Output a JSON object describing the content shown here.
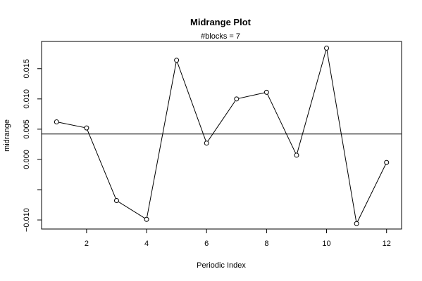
{
  "chart_data": {
    "type": "line",
    "title": "Midrange Plot",
    "subtitle": "#blocks =  7",
    "xlabel": "Periodic Index",
    "ylabel": "midrange",
    "x": [
      1,
      2,
      3,
      4,
      5,
      6,
      7,
      8,
      9,
      10,
      11,
      12
    ],
    "values": [
      0.0062,
      0.0052,
      -0.0068,
      -0.0099,
      0.0164,
      0.0027,
      0.01,
      0.0111,
      0.0007,
      0.0184,
      -0.0106,
      -0.0005
    ],
    "reference_line": 0.0042,
    "xlim": [
      0.5,
      12.5
    ],
    "ylim": [
      -0.0115,
      0.0195
    ],
    "xticks": [
      2,
      4,
      6,
      8,
      10,
      12
    ],
    "xtick_labels": [
      "2",
      "4",
      "6",
      "8",
      "10",
      "12"
    ],
    "yticks": [
      -0.01,
      -0.005,
      0.0,
      0.005,
      0.01,
      0.015
    ],
    "ytick_labels": [
      "−0.010",
      "",
      "0.000",
      "0.005",
      "0.010",
      "0.015"
    ],
    "grid": false,
    "markers": "open-circle"
  }
}
